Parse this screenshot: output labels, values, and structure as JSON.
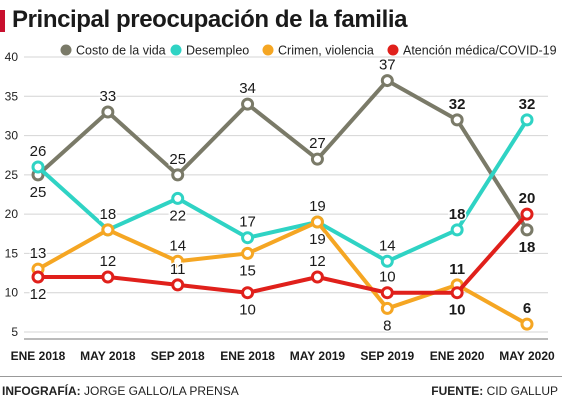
{
  "title": "Principal preocupación de la familia",
  "footer": {
    "credit_label": "INFOGRAFÍA:",
    "credit_value": "JORGE GALLO/LA PRENSA",
    "source_label": "FUENTE:",
    "source_value": "CID GALLUP"
  },
  "chart_data": {
    "type": "line",
    "title": "Principal preocupación de la familia",
    "xlabel": "",
    "ylabel": "",
    "categories": [
      "ENE 2018",
      "MAY 2018",
      "SEP 2018",
      "ENE 2018",
      "MAY 2019",
      "SEP 2019",
      "ENE 2020",
      "MAY 2020"
    ],
    "bold_categories": [
      "ENE 2020",
      "MAY 2020"
    ],
    "ylim": [
      5,
      40
    ],
    "yticks": [
      5,
      10,
      15,
      20,
      25,
      30,
      35,
      40
    ],
    "grid": true,
    "legend_position": "top",
    "series": [
      {
        "name": "Costo de la vida",
        "color": "#7a7a68",
        "values": [
          25,
          33,
          25,
          34,
          27,
          37,
          32,
          18
        ],
        "label_pos": [
          "below",
          "above",
          "above",
          "above",
          "above",
          "above",
          "above",
          "below"
        ]
      },
      {
        "name": "Desempleo",
        "color": "#2fd3c4",
        "values": [
          26,
          18,
          22,
          17,
          19,
          14,
          18,
          32
        ],
        "label_pos": [
          "above",
          "above",
          "below",
          "above",
          "below",
          "above",
          "above",
          "above"
        ]
      },
      {
        "name": "Crimen, violencia",
        "color": "#f5a623",
        "values": [
          13,
          18,
          14,
          15,
          19,
          8,
          11,
          6
        ],
        "label_pos": [
          "above",
          "above",
          "above",
          "below",
          "above",
          "below",
          "above",
          "above"
        ]
      },
      {
        "name": "Atención médica/COVID-19",
        "color": "#e0201b",
        "values": [
          12,
          12,
          11,
          10,
          12,
          10,
          10,
          20
        ],
        "label_pos": [
          "below",
          "above",
          "above",
          "below",
          "above",
          "above",
          "below",
          "above"
        ]
      }
    ]
  }
}
